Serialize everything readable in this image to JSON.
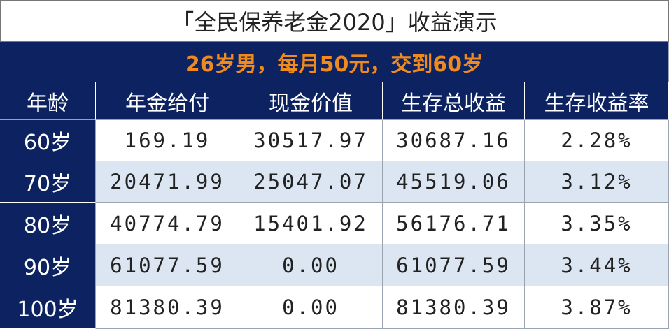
{
  "header": {
    "title": "「全民保养老金2020」收益演示",
    "subtitle": "26岁男，每月50元，交到60岁"
  },
  "table": {
    "columns": [
      "年龄",
      "年金给付",
      "现金价值",
      "生存总收益",
      "生存收益率"
    ],
    "rows": [
      [
        "60岁",
        "169.19",
        "30517.97",
        "30687.16",
        "2.28%"
      ],
      [
        "70岁",
        "20471.99",
        "25047.07",
        "45519.06",
        "3.12%"
      ],
      [
        "80岁",
        "40774.79",
        "15401.92",
        "56176.71",
        "3.35%"
      ],
      [
        "90岁",
        "61077.59",
        "0.00",
        "61077.59",
        "3.44%"
      ],
      [
        "100岁",
        "81380.39",
        "0.00",
        "81380.39",
        "3.87%"
      ]
    ]
  }
}
